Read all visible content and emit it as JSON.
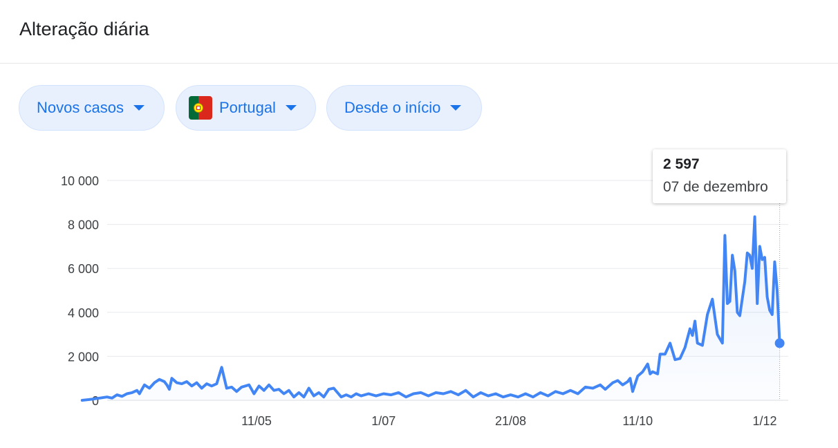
{
  "header": {
    "title": "Alteração diária"
  },
  "filters": [
    {
      "label": "Novos casos",
      "icon": "chevron-down-icon"
    },
    {
      "label": "Portugal",
      "icon": "portugal-flag-icon"
    },
    {
      "label": "Desde o início",
      "icon": "chevron-down-icon"
    }
  ],
  "tooltip": {
    "value": "2 597",
    "date": "07 de dezembro"
  },
  "colors": {
    "line": "#4285f4",
    "accent": "#1a73e8",
    "chip_bg": "#e8f0fe"
  },
  "chart_data": {
    "type": "area",
    "title": "",
    "xlabel": "",
    "ylabel": "",
    "ylim": [
      0,
      10000
    ],
    "yticks": [
      {
        "value": 0,
        "label": "0"
      },
      {
        "value": 2000,
        "label": "2 000"
      },
      {
        "value": 4000,
        "label": "4 000"
      },
      {
        "value": 6000,
        "label": "6 000"
      },
      {
        "value": 8000,
        "label": "8 000"
      },
      {
        "value": 10000,
        "label": "10 000"
      }
    ],
    "xticks": [
      {
        "date": "2020-05-11",
        "label": "11/05"
      },
      {
        "date": "2020-07-01",
        "label": "1/07"
      },
      {
        "date": "2020-08-21",
        "label": "21/08"
      },
      {
        "date": "2020-10-11",
        "label": "11/10"
      },
      {
        "date": "2020-12-01",
        "label": "1/12"
      }
    ],
    "grid": true,
    "highlight": {
      "date": "2020-12-07",
      "value": 2597
    },
    "series": [
      {
        "points": [
          [
            "2020-03-02",
            0
          ],
          [
            "2020-03-06",
            50
          ],
          [
            "2020-03-09",
            100
          ],
          [
            "2020-03-12",
            150
          ],
          [
            "2020-03-14",
            100
          ],
          [
            "2020-03-16",
            250
          ],
          [
            "2020-03-18",
            180
          ],
          [
            "2020-03-20",
            300
          ],
          [
            "2020-03-22",
            350
          ],
          [
            "2020-03-24",
            450
          ],
          [
            "2020-03-25",
            300
          ],
          [
            "2020-03-27",
            700
          ],
          [
            "2020-03-29",
            550
          ],
          [
            "2020-03-31",
            800
          ],
          [
            "2020-04-02",
            950
          ],
          [
            "2020-04-04",
            850
          ],
          [
            "2020-04-05",
            700
          ],
          [
            "2020-04-06",
            500
          ],
          [
            "2020-04-07",
            1000
          ],
          [
            "2020-04-09",
            800
          ],
          [
            "2020-04-11",
            750
          ],
          [
            "2020-04-13",
            850
          ],
          [
            "2020-04-15",
            650
          ],
          [
            "2020-04-17",
            800
          ],
          [
            "2020-04-19",
            550
          ],
          [
            "2020-04-21",
            750
          ],
          [
            "2020-04-23",
            650
          ],
          [
            "2020-04-25",
            750
          ],
          [
            "2020-04-27",
            1500
          ],
          [
            "2020-04-29",
            550
          ],
          [
            "2020-05-01",
            600
          ],
          [
            "2020-05-03",
            400
          ],
          [
            "2020-05-05",
            600
          ],
          [
            "2020-05-08",
            700
          ],
          [
            "2020-05-10",
            300
          ],
          [
            "2020-05-12",
            650
          ],
          [
            "2020-05-14",
            450
          ],
          [
            "2020-05-16",
            700
          ],
          [
            "2020-05-18",
            450
          ],
          [
            "2020-05-20",
            500
          ],
          [
            "2020-05-22",
            300
          ],
          [
            "2020-05-24",
            450
          ],
          [
            "2020-05-26",
            150
          ],
          [
            "2020-05-28",
            350
          ],
          [
            "2020-05-30",
            150
          ],
          [
            "2020-06-01",
            550
          ],
          [
            "2020-06-03",
            200
          ],
          [
            "2020-06-05",
            350
          ],
          [
            "2020-06-07",
            150
          ],
          [
            "2020-06-09",
            500
          ],
          [
            "2020-06-11",
            550
          ],
          [
            "2020-06-14",
            150
          ],
          [
            "2020-06-16",
            250
          ],
          [
            "2020-06-18",
            150
          ],
          [
            "2020-06-20",
            300
          ],
          [
            "2020-06-22",
            200
          ],
          [
            "2020-06-25",
            300
          ],
          [
            "2020-06-28",
            200
          ],
          [
            "2020-07-01",
            300
          ],
          [
            "2020-07-04",
            250
          ],
          [
            "2020-07-07",
            350
          ],
          [
            "2020-07-10",
            150
          ],
          [
            "2020-07-13",
            300
          ],
          [
            "2020-07-16",
            350
          ],
          [
            "2020-07-19",
            200
          ],
          [
            "2020-07-22",
            350
          ],
          [
            "2020-07-25",
            300
          ],
          [
            "2020-07-28",
            400
          ],
          [
            "2020-07-31",
            250
          ],
          [
            "2020-08-03",
            450
          ],
          [
            "2020-08-06",
            150
          ],
          [
            "2020-08-09",
            350
          ],
          [
            "2020-08-12",
            200
          ],
          [
            "2020-08-15",
            300
          ],
          [
            "2020-08-18",
            150
          ],
          [
            "2020-08-21",
            250
          ],
          [
            "2020-08-24",
            150
          ],
          [
            "2020-08-27",
            300
          ],
          [
            "2020-08-30",
            150
          ],
          [
            "2020-09-02",
            350
          ],
          [
            "2020-09-05",
            200
          ],
          [
            "2020-09-08",
            400
          ],
          [
            "2020-09-11",
            300
          ],
          [
            "2020-09-14",
            450
          ],
          [
            "2020-09-17",
            300
          ],
          [
            "2020-09-20",
            600
          ],
          [
            "2020-09-23",
            550
          ],
          [
            "2020-09-26",
            700
          ],
          [
            "2020-09-28",
            500
          ],
          [
            "2020-10-01",
            800
          ],
          [
            "2020-10-03",
            900
          ],
          [
            "2020-10-05",
            700
          ],
          [
            "2020-10-07",
            850
          ],
          [
            "2020-10-08",
            1000
          ],
          [
            "2020-10-09",
            400
          ],
          [
            "2020-10-11",
            1100
          ],
          [
            "2020-10-13",
            1300
          ],
          [
            "2020-10-15",
            1650
          ],
          [
            "2020-10-16",
            1200
          ],
          [
            "2020-10-17",
            1300
          ],
          [
            "2020-10-19",
            1200
          ],
          [
            "2020-10-20",
            2100
          ],
          [
            "2020-10-22",
            2100
          ],
          [
            "2020-10-24",
            2600
          ],
          [
            "2020-10-26",
            1850
          ],
          [
            "2020-10-28",
            1900
          ],
          [
            "2020-10-30",
            2400
          ],
          [
            "2020-11-01",
            3250
          ],
          [
            "2020-11-02",
            2950
          ],
          [
            "2020-11-03",
            3600
          ],
          [
            "2020-11-04",
            2600
          ],
          [
            "2020-11-06",
            2500
          ],
          [
            "2020-11-08",
            3900
          ],
          [
            "2020-11-10",
            4600
          ],
          [
            "2020-11-12",
            3000
          ],
          [
            "2020-11-14",
            2600
          ],
          [
            "2020-11-15",
            7500
          ],
          [
            "2020-11-16",
            4400
          ],
          [
            "2020-11-17",
            4500
          ],
          [
            "2020-11-18",
            6600
          ],
          [
            "2020-11-19",
            5900
          ],
          [
            "2020-11-20",
            4000
          ],
          [
            "2020-11-21",
            3850
          ],
          [
            "2020-11-23",
            5400
          ],
          [
            "2020-11-24",
            6700
          ],
          [
            "2020-11-25",
            6600
          ],
          [
            "2020-11-26",
            6000
          ],
          [
            "2020-11-27",
            8350
          ],
          [
            "2020-11-28",
            4400
          ],
          [
            "2020-11-29",
            7000
          ],
          [
            "2020-11-30",
            6400
          ],
          [
            "2020-12-01",
            6500
          ],
          [
            "2020-12-02",
            4700
          ],
          [
            "2020-12-03",
            4100
          ],
          [
            "2020-12-04",
            3900
          ],
          [
            "2020-12-05",
            6300
          ],
          [
            "2020-12-06",
            5000
          ],
          [
            "2020-12-07",
            2597
          ]
        ]
      }
    ]
  }
}
